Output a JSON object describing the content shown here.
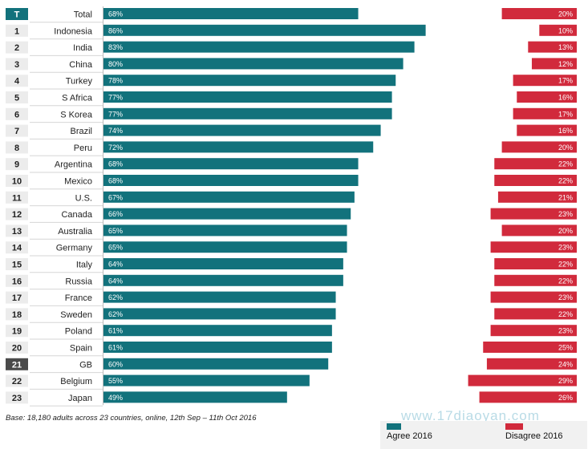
{
  "chart_data": {
    "type": "bar",
    "orientation": "horizontal-diverging",
    "ranks": [
      "T",
      "1",
      "2",
      "3",
      "4",
      "5",
      "6",
      "7",
      "8",
      "9",
      "10",
      "11",
      "12",
      "13",
      "14",
      "15",
      "16",
      "17",
      "18",
      "19",
      "20",
      "21",
      "22",
      "23"
    ],
    "categories": [
      "Total",
      "Indonesia",
      "India",
      "China",
      "Turkey",
      "S Africa",
      "S Korea",
      "Brazil",
      "Peru",
      "Argentina",
      "Mexico",
      "U.S.",
      "Canada",
      "Australia",
      "Germany",
      "Italy",
      "Russia",
      "France",
      "Sweden",
      "Poland",
      "Spain",
      "GB",
      "Belgium",
      "Japan"
    ],
    "series": [
      {
        "name": "Agree 2016",
        "values": [
          68,
          86,
          83,
          80,
          78,
          77,
          77,
          74,
          72,
          68,
          68,
          67,
          66,
          65,
          65,
          64,
          64,
          62,
          62,
          61,
          61,
          60,
          55,
          49
        ],
        "color": "#12727c"
      },
      {
        "name": "Disagree 2016",
        "values": [
          20,
          10,
          13,
          12,
          17,
          16,
          17,
          16,
          20,
          22,
          22,
          21,
          23,
          20,
          23,
          22,
          22,
          23,
          22,
          23,
          25,
          24,
          29,
          26
        ],
        "color": "#d12a3c"
      }
    ],
    "value_format": "percent",
    "highlight_rank": "21",
    "colors": {
      "rank_box": "#ececec",
      "rank_box_dark": "#4a4a4a",
      "rank_box_accent": "#12727c"
    }
  },
  "footer": {
    "base_note": "Base: 18,180 adults across 23 countries, online, 12th Sep – 11th Oct 2016",
    "watermark": "www.17diaoyan.com"
  },
  "legend": {
    "agree_label": "Agree 2016",
    "disagree_label": "Disagree 2016"
  }
}
